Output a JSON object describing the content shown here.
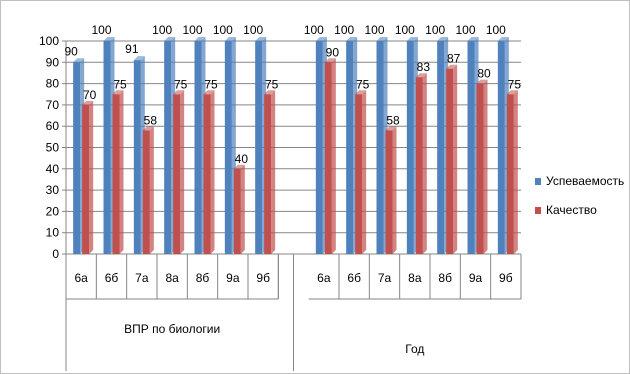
{
  "chart_data": {
    "type": "bar",
    "title": "",
    "xlabel": "",
    "ylabel": "",
    "ylim": [
      0,
      100
    ],
    "yticks": [
      "0",
      "10",
      "20",
      "30",
      "40",
      "50",
      "60",
      "70",
      "80",
      "90",
      "100"
    ],
    "grid": true,
    "legend_position": "right",
    "groups": [
      {
        "label": "ВПР по биологии",
        "categories": [
          "6а",
          "6б",
          "7а",
          "8а",
          "8б",
          "9а",
          "9б"
        ]
      },
      {
        "label": "Год",
        "categories": [
          "6а",
          "6б",
          "7а",
          "8а",
          "8б",
          "9а",
          "9б"
        ]
      }
    ],
    "series": [
      {
        "name": "Успеваемость",
        "color": "#4f81bd",
        "values": [
          90,
          100,
          91,
          100,
          100,
          100,
          100,
          100,
          100,
          100,
          100,
          100,
          100,
          100
        ]
      },
      {
        "name": "Качество",
        "color": "#c0504d",
        "values": [
          70,
          75,
          58,
          75,
          75,
          40,
          75,
          90,
          75,
          58,
          83,
          87,
          80,
          75
        ]
      }
    ]
  }
}
